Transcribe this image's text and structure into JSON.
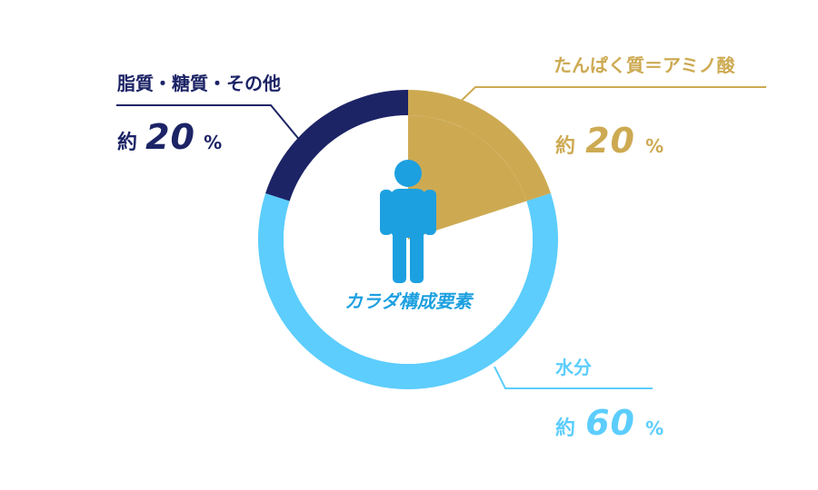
{
  "colors": {
    "protein": "#cdaa52",
    "fat": "#1c2466",
    "water": "#5ccdfd",
    "person": "#1da0e0",
    "center_text": "#1da0e0",
    "background": "#ffffff"
  },
  "center": {
    "title": "カラダ構成要素",
    "icon": "person-icon"
  },
  "labels": {
    "protein": {
      "name": "たんぱく質＝アミノ酸",
      "approx": "約",
      "number": "20",
      "unit": "%"
    },
    "fat": {
      "name": "脂質・糖質・その他",
      "approx": "約",
      "number": "20",
      "unit": "%"
    },
    "water": {
      "name": "水分",
      "approx": "約",
      "number": "60",
      "unit": "%"
    }
  },
  "chart_data": {
    "type": "pie",
    "title": "カラダ構成要素",
    "categories": [
      "たんぱく質＝アミノ酸",
      "水分",
      "脂質・糖質・その他"
    ],
    "values": [
      20,
      60,
      20
    ],
    "unit": "%",
    "donut": true,
    "start": "12 o'clock",
    "direction": "clockwise",
    "legend": "none",
    "callouts": {
      "たんぱく質＝アミノ酸": "top-right",
      "水分": "bottom-right",
      "脂質・糖質・その他": "top-left"
    }
  }
}
